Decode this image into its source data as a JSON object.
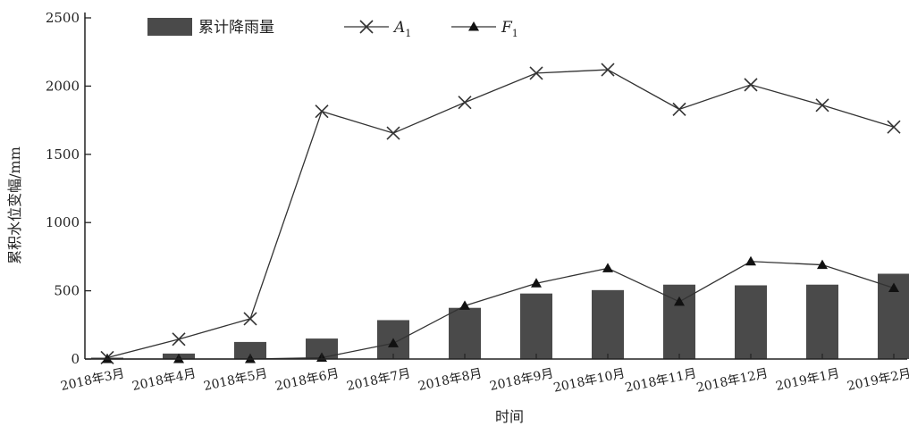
{
  "chart_data": {
    "type": "bar+line",
    "categories": [
      "2018年3月",
      "2018年4月",
      "2018年5月",
      "2018年6月",
      "2018年7月",
      "2018年8月",
      "2018年9月",
      "2018年10月",
      "2018年11月",
      "2018年12月",
      "2019年1月",
      "2019年2月"
    ],
    "bars": {
      "name": "累计降雨量",
      "values": [
        10,
        40,
        125,
        150,
        285,
        375,
        480,
        505,
        545,
        540,
        545,
        625
      ]
    },
    "series": [
      {
        "name": "A",
        "subscript": "1",
        "marker": "x",
        "values": [
          10,
          145,
          295,
          1815,
          1655,
          1880,
          2095,
          2120,
          1830,
          2010,
          1860,
          1700
        ]
      },
      {
        "name": "F",
        "subscript": "1",
        "marker": "triangle",
        "values": [
          0,
          0,
          0,
          10,
          115,
          390,
          555,
          665,
          420,
          715,
          690,
          520
        ]
      }
    ],
    "xlabel": "时间",
    "ylabel": "累积水位变幅/mm",
    "ylim": [
      0,
      2500
    ],
    "yticks": [
      0,
      500,
      1000,
      1500,
      2000,
      2500
    ],
    "legend": "top",
    "grid": false,
    "colors": {
      "bar": "#4a4a4a",
      "line": "#333333",
      "axis": "#222222"
    }
  }
}
